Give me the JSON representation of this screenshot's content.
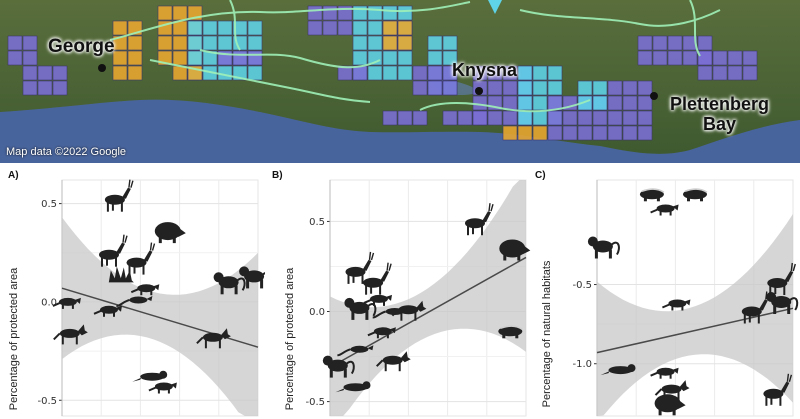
{
  "map": {
    "attribution": "Map data ©2022 Google",
    "towns": [
      {
        "name": "George"
      },
      {
        "name": "Knysna"
      },
      {
        "name": "Plettenberg Bay",
        "lines": [
          "Plettenberg",
          "Bay"
        ]
      }
    ],
    "colors": {
      "purple": "#7b6fd6",
      "orange": "#eaa82f",
      "cyan": "#5fd3e8",
      "border": "#9ff0b8",
      "land": "#4f6a3a",
      "sea": "#48649c"
    }
  },
  "chart_data": [
    {
      "panel": "A)",
      "type": "scatter",
      "ylabel": "Percentage of protected area",
      "yticks": [
        0.5,
        0.0,
        -0.5
      ],
      "ylim": [
        -0.58,
        0.62
      ],
      "xlim": [
        0,
        1
      ],
      "points": [
        {
          "x": 0.27,
          "y": 0.52,
          "icon": "antelope-icon"
        },
        {
          "x": 0.24,
          "y": 0.24,
          "icon": "deer-icon"
        },
        {
          "x": 0.54,
          "y": 0.36,
          "icon": "bushpig-icon"
        },
        {
          "x": 0.38,
          "y": 0.2,
          "icon": "antelope-icon"
        },
        {
          "x": 0.3,
          "y": 0.13,
          "icon": "porcupine-icon"
        },
        {
          "x": 0.43,
          "y": 0.07,
          "icon": "mongoose-icon"
        },
        {
          "x": 0.39,
          "y": 0.01,
          "icon": "genet-icon"
        },
        {
          "x": 0.24,
          "y": -0.04,
          "icon": "mongoose-icon"
        },
        {
          "x": 0.03,
          "y": 0.0,
          "icon": "mongoose-icon"
        },
        {
          "x": 0.85,
          "y": 0.1,
          "icon": "baboon-icon"
        },
        {
          "x": 0.98,
          "y": 0.13,
          "icon": "baboon-icon"
        },
        {
          "x": 0.04,
          "y": -0.16,
          "icon": "caracal-icon"
        },
        {
          "x": 0.77,
          "y": -0.18,
          "icon": "jackal-icon"
        },
        {
          "x": 0.46,
          "y": -0.38,
          "icon": "otter-icon"
        },
        {
          "x": 0.52,
          "y": -0.43,
          "icon": "mongoose-icon"
        }
      ],
      "trend": {
        "y_start": 0.07,
        "y_end": -0.23
      }
    },
    {
      "panel": "B)",
      "type": "scatter",
      "ylabel": "Percentage of protected area",
      "yticks": [
        0.5,
        0.0,
        -0.5
      ],
      "ylim": [
        -0.58,
        0.73
      ],
      "xlim": [
        0,
        1
      ],
      "points": [
        {
          "x": 0.74,
          "y": 0.49,
          "icon": "antelope-icon"
        },
        {
          "x": 0.93,
          "y": 0.35,
          "icon": "bushpig-icon"
        },
        {
          "x": 0.13,
          "y": 0.22,
          "icon": "deer-icon"
        },
        {
          "x": 0.22,
          "y": 0.16,
          "icon": "antelope-icon"
        },
        {
          "x": 0.25,
          "y": 0.07,
          "icon": "mongoose-icon"
        },
        {
          "x": 0.15,
          "y": 0.02,
          "icon": "baboon-icon"
        },
        {
          "x": 0.4,
          "y": 0.01,
          "icon": "caracal-icon"
        },
        {
          "x": 0.33,
          "y": 0.0,
          "icon": "genet-icon"
        },
        {
          "x": 0.27,
          "y": -0.11,
          "icon": "mongoose-icon"
        },
        {
          "x": 0.92,
          "y": -0.11,
          "icon": "honey-badger-icon"
        },
        {
          "x": 0.15,
          "y": -0.21,
          "icon": "genet-icon"
        },
        {
          "x": 0.32,
          "y": -0.27,
          "icon": "jackal-icon"
        },
        {
          "x": 0.04,
          "y": -0.3,
          "icon": "baboon-icon"
        },
        {
          "x": 0.13,
          "y": -0.42,
          "icon": "otter-icon"
        }
      ],
      "trend": {
        "y_start": -0.31,
        "y_end": 0.3
      }
    },
    {
      "panel": "C)",
      "type": "scatter",
      "ylabel": "Percentage of natural habitats",
      "yticks": [
        -0.5,
        -1.0
      ],
      "ylim": [
        -1.33,
        0.16
      ],
      "xlim": [
        0,
        1
      ],
      "points": [
        {
          "x": 0.28,
          "y": 0.07,
          "icon": "honey-badger-icon"
        },
        {
          "x": 0.5,
          "y": 0.07,
          "icon": "honey-badger-icon"
        },
        {
          "x": 0.35,
          "y": -0.02,
          "icon": "mongoose-icon"
        },
        {
          "x": 0.03,
          "y": -0.26,
          "icon": "baboon-icon"
        },
        {
          "x": 0.92,
          "y": -0.49,
          "icon": "antelope-icon"
        },
        {
          "x": 0.41,
          "y": -0.62,
          "icon": "mongoose-icon"
        },
        {
          "x": 0.94,
          "y": -0.61,
          "icon": "baboon-icon"
        },
        {
          "x": 0.79,
          "y": -0.67,
          "icon": "antelope-icon"
        },
        {
          "x": 0.12,
          "y": -1.04,
          "icon": "otter-icon"
        },
        {
          "x": 0.35,
          "y": -1.05,
          "icon": "mongoose-icon"
        },
        {
          "x": 0.38,
          "y": -1.16,
          "icon": "caracal-icon"
        },
        {
          "x": 0.36,
          "y": -1.25,
          "icon": "bushpig-icon"
        },
        {
          "x": 0.9,
          "y": -1.19,
          "icon": "antelope-icon"
        }
      ],
      "trend": {
        "y_start": -0.93,
        "y_end": -0.65
      }
    }
  ]
}
